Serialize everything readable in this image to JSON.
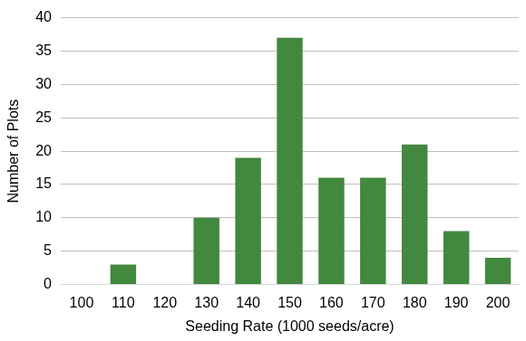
{
  "chart_data": {
    "type": "bar",
    "x_label": "Seeding Rate (1000 seeds/acre)",
    "y_label": "Number of Plots",
    "categories": [
      "100",
      "110",
      "120",
      "130",
      "140",
      "150",
      "160",
      "170",
      "180",
      "190",
      "200"
    ],
    "values": [
      0,
      3,
      0,
      10,
      19,
      37,
      16,
      16,
      21,
      8,
      4
    ],
    "color": "#43883f",
    "ylim": [
      0,
      40
    ],
    "yticks": [
      0,
      5,
      10,
      15,
      20,
      25,
      30,
      35,
      40
    ],
    "grid": true
  }
}
